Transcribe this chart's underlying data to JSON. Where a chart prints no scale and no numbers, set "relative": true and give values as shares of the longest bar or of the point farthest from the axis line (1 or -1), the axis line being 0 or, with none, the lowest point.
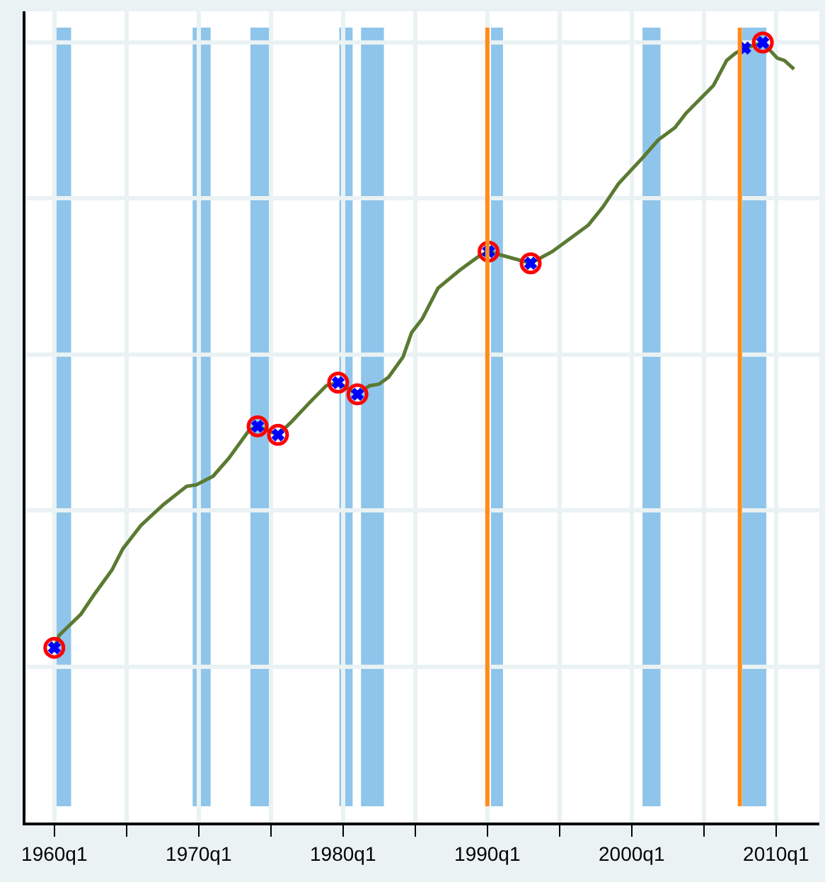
{
  "chart_data": {
    "type": "line",
    "relative": true,
    "x": [
      "1960-01",
      "1960-05",
      "1961-11",
      "1962-10",
      "1964-01",
      "1964-10",
      "1966-01",
      "1967-08",
      "1969-03",
      "1969-11",
      "1971-01",
      "1972-02",
      "1973-07",
      "1974-02",
      "1975-07",
      "1976-07",
      "1977-09",
      "1978-11",
      "1979-09",
      "1981-01",
      "1981-11",
      "1982-07",
      "1983-03",
      "1984-03",
      "1984-10",
      "1985-07",
      "1986-08",
      "1988-02",
      "1989-06",
      "1990-02",
      "1991-04",
      "1993-01",
      "1994-07",
      "1995-11",
      "1997-01",
      "1998-01",
      "1999-02",
      "2000-10",
      "2001-11",
      "2003-01",
      "2003-10",
      "2005-09",
      "2006-08",
      "2007-03",
      "2007-11",
      "2009-02",
      "2010-02",
      "2010-08",
      "2011-04"
    ],
    "series": [
      {
        "color": "#5a7a32",
        "values": [
          0.224,
          0.24,
          0.267,
          0.292,
          0.324,
          0.351,
          0.381,
          0.408,
          0.431,
          0.433,
          0.444,
          0.467,
          0.503,
          0.508,
          0.497,
          0.515,
          0.538,
          0.56,
          0.564,
          0.549,
          0.56,
          0.562,
          0.571,
          0.597,
          0.628,
          0.646,
          0.685,
          0.708,
          0.726,
          0.732,
          0.726,
          0.717,
          0.732,
          0.75,
          0.766,
          0.789,
          0.819,
          0.852,
          0.875,
          0.891,
          0.909,
          0.945,
          0.977,
          0.986,
          0.993,
          1.0,
          0.98,
          0.977,
          0.966
        ]
      },
      {
        "type": "scatter",
        "marker": "circle",
        "color": "#ff0000",
        "x": [
          "1960-01",
          "1974-02",
          "1975-07",
          "1979-09",
          "1981-01",
          "1990-02",
          "1993-01",
          "2009-02"
        ],
        "values": [
          0.224,
          0.508,
          0.497,
          0.564,
          0.549,
          0.732,
          0.717,
          1.0
        ]
      },
      {
        "type": "scatter",
        "marker": "cross",
        "color": "#0000ff",
        "x": [
          "1960-01",
          "1974-02",
          "1975-07",
          "1979-09",
          "1981-01",
          "1990-02",
          "1993-01",
          "2007-11",
          "2009-02"
        ],
        "values": [
          0.224,
          0.508,
          0.497,
          0.564,
          0.549,
          0.732,
          0.717,
          0.993,
          1.0
        ]
      }
    ],
    "xlim": [
      "1958-01",
      "2013-01"
    ],
    "xticks": [
      {
        "value": "1960-01",
        "label": "1960q1"
      },
      {
        "value": "1965-01",
        "label": null
      },
      {
        "value": "1970-01",
        "label": "1970q1"
      },
      {
        "value": "1975-01",
        "label": null
      },
      {
        "value": "1980-01",
        "label": "1980q1"
      },
      {
        "value": "1985-01",
        "label": null
      },
      {
        "value": "1990-01",
        "label": "1990q1"
      },
      {
        "value": "1995-01",
        "label": null
      },
      {
        "value": "2000-01",
        "label": "2000q1"
      },
      {
        "value": "2005-01",
        "label": null
      },
      {
        "value": "2010-01",
        "label": "2010q1"
      }
    ],
    "bands": [
      {
        "axis": "x",
        "from": "1960-02",
        "to": "1961-03",
        "color": "#8fc5ea"
      },
      {
        "axis": "x",
        "from": "1969-08",
        "to": "1970-11",
        "color": "#8fc5ea"
      },
      {
        "axis": "x",
        "from": "1973-08",
        "to": "1975-02",
        "color": "#8fc5ea"
      },
      {
        "axis": "x",
        "from": "1979-10",
        "to": "1980-09",
        "color": "#8fc5ea"
      },
      {
        "axis": "x",
        "from": "1981-04",
        "to": "1982-11",
        "color": "#8fc5ea"
      },
      {
        "axis": "x",
        "from": "1990-04",
        "to": "1991-02",
        "color": "#8fc5ea"
      },
      {
        "axis": "x",
        "from": "2000-10",
        "to": "2002-01",
        "color": "#8fc5ea"
      },
      {
        "axis": "x",
        "from": "2007-09",
        "to": "2009-05",
        "color": "#8fc5ea"
      }
    ],
    "ref_lines": [
      {
        "axis": "x",
        "value": "1990-01",
        "color": "#ff8c1a"
      },
      {
        "axis": "x",
        "value": "2007-07",
        "color": "#ff8c1a"
      }
    ],
    "grid": true,
    "line_style": "solid"
  }
}
